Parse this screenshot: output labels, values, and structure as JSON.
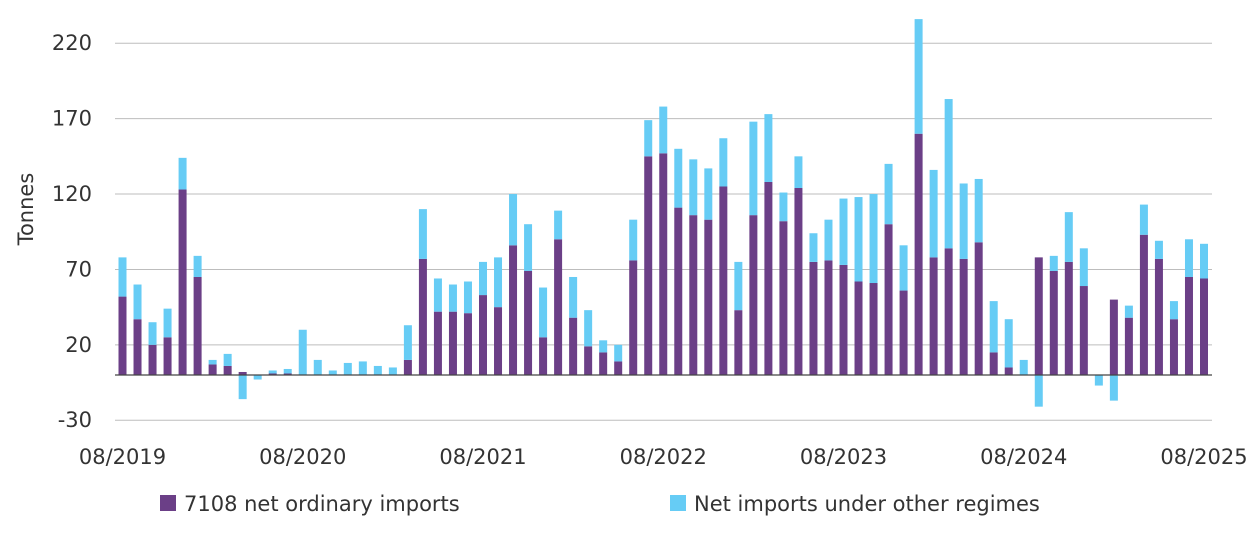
{
  "chart_data": {
    "type": "bar",
    "stacked": true,
    "ylabel": "Tonnes",
    "ylim": [
      -30,
      230
    ],
    "yticks": [
      "220",
      "170",
      "120",
      "70",
      "20",
      "-30"
    ],
    "ytick_values": [
      220,
      170,
      120,
      70,
      20,
      -30
    ],
    "xtick_labels": [
      "08/2019",
      "08/2020",
      "08/2021",
      "08/2022",
      "08/2023",
      "08/2024",
      "08/2025"
    ],
    "grid": true,
    "legend_position": "bottom",
    "categories": [
      "2019-08",
      "2019-09",
      "2019-10",
      "2019-11",
      "2019-12",
      "2020-01",
      "2020-02",
      "2020-03",
      "2020-04",
      "2020-05",
      "2020-06",
      "2020-07",
      "2020-08",
      "2020-09",
      "2020-10",
      "2020-11",
      "2020-12",
      "2021-01",
      "2021-02",
      "2021-03",
      "2021-04",
      "2021-05",
      "2021-06",
      "2021-07",
      "2021-08",
      "2021-09",
      "2021-10",
      "2021-11",
      "2021-12",
      "2022-01",
      "2022-02",
      "2022-03",
      "2022-04",
      "2022-05",
      "2022-06",
      "2022-07",
      "2022-08",
      "2022-09",
      "2022-10",
      "2022-11",
      "2022-12",
      "2023-01",
      "2023-02",
      "2023-03",
      "2023-04",
      "2023-05",
      "2023-06",
      "2023-07",
      "2023-08",
      "2023-09",
      "2023-10",
      "2023-11",
      "2023-12",
      "2024-01",
      "2024-02",
      "2024-03",
      "2024-04",
      "2024-05",
      "2024-06",
      "2024-07",
      "2024-08",
      "2024-09",
      "2024-10",
      "2024-11",
      "2024-12",
      "2025-01",
      "2025-02",
      "2025-03",
      "2025-04",
      "2025-05",
      "2025-06",
      "2025-07",
      "2025-08"
    ],
    "series": [
      {
        "name": "7108 net ordinary imports",
        "color": "#6b3f87",
        "values": [
          52,
          37,
          20,
          25,
          123,
          65,
          7,
          6,
          2,
          0,
          1,
          1,
          0,
          0,
          0,
          0,
          0,
          0,
          0,
          10,
          77,
          42,
          42,
          41,
          53,
          45,
          86,
          69,
          25,
          90,
          38,
          19,
          15,
          9,
          76,
          145,
          147,
          111,
          106,
          103,
          125,
          43,
          106,
          128,
          102,
          124,
          75,
          76,
          73,
          62,
          61,
          100,
          56,
          160,
          78,
          84,
          77,
          88,
          15,
          5,
          0,
          78,
          69,
          75,
          59,
          0,
          50,
          38,
          93,
          77,
          37,
          65,
          64
        ]
      },
      {
        "name": "Net imports under other regimes",
        "color": "#66ccf5",
        "values": [
          26,
          23,
          15,
          19,
          21,
          14,
          3,
          8,
          -16,
          -3,
          2,
          3,
          30,
          10,
          3,
          8,
          9,
          6,
          5,
          23,
          33,
          22,
          18,
          21,
          22,
          33,
          34,
          31,
          33,
          19,
          27,
          24,
          8,
          11,
          27,
          24,
          31,
          39,
          37,
          34,
          32,
          32,
          62,
          45,
          19,
          21,
          19,
          27,
          44,
          56,
          59,
          40,
          30,
          76,
          58,
          99,
          50,
          42,
          34,
          32,
          10,
          -21,
          10,
          33,
          25,
          -7,
          -17,
          8,
          20,
          12,
          12,
          25,
          23
        ]
      }
    ]
  }
}
